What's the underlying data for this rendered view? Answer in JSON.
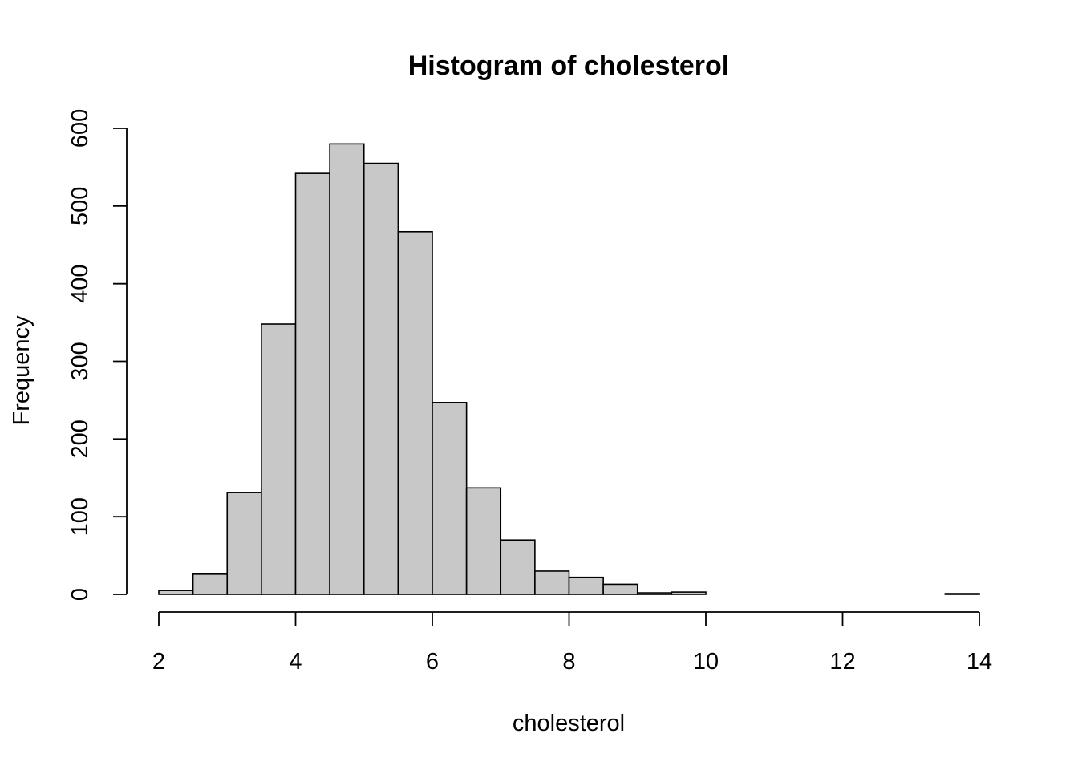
{
  "chart_data": {
    "type": "bar",
    "title": "Histogram of cholesterol",
    "xlabel": "cholesterol",
    "ylabel": "Frequency",
    "bins": [
      {
        "start": 2.0,
        "end": 2.5,
        "count": 5
      },
      {
        "start": 2.5,
        "end": 3.0,
        "count": 26
      },
      {
        "start": 3.0,
        "end": 3.5,
        "count": 131
      },
      {
        "start": 3.5,
        "end": 4.0,
        "count": 348
      },
      {
        "start": 4.0,
        "end": 4.5,
        "count": 542
      },
      {
        "start": 4.5,
        "end": 5.0,
        "count": 580
      },
      {
        "start": 5.0,
        "end": 5.5,
        "count": 555
      },
      {
        "start": 5.5,
        "end": 6.0,
        "count": 467
      },
      {
        "start": 6.0,
        "end": 6.5,
        "count": 247
      },
      {
        "start": 6.5,
        "end": 7.0,
        "count": 137
      },
      {
        "start": 7.0,
        "end": 7.5,
        "count": 70
      },
      {
        "start": 7.5,
        "end": 8.0,
        "count": 30
      },
      {
        "start": 8.0,
        "end": 8.5,
        "count": 22
      },
      {
        "start": 8.5,
        "end": 9.0,
        "count": 13
      },
      {
        "start": 9.0,
        "end": 9.5,
        "count": 2
      },
      {
        "start": 9.5,
        "end": 10.0,
        "count": 3
      },
      {
        "start": 10.0,
        "end": 10.5,
        "count": 0
      },
      {
        "start": 10.5,
        "end": 11.0,
        "count": 0
      },
      {
        "start": 11.0,
        "end": 11.5,
        "count": 0
      },
      {
        "start": 11.5,
        "end": 12.0,
        "count": 0
      },
      {
        "start": 12.0,
        "end": 12.5,
        "count": 0
      },
      {
        "start": 12.5,
        "end": 13.0,
        "count": 0
      },
      {
        "start": 13.0,
        "end": 13.5,
        "count": 0
      },
      {
        "start": 13.5,
        "end": 14.0,
        "count": 1
      }
    ],
    "xlim": [
      2,
      14
    ],
    "ylim": [
      0,
      600
    ],
    "x_ticks": [
      "2",
      "4",
      "6",
      "8",
      "10",
      "12",
      "14"
    ],
    "y_ticks": [
      "0",
      "100",
      "200",
      "300",
      "400",
      "500",
      "600"
    ],
    "grid": false,
    "bar_color": "#c8c8c8",
    "edge_color": "#000000"
  }
}
